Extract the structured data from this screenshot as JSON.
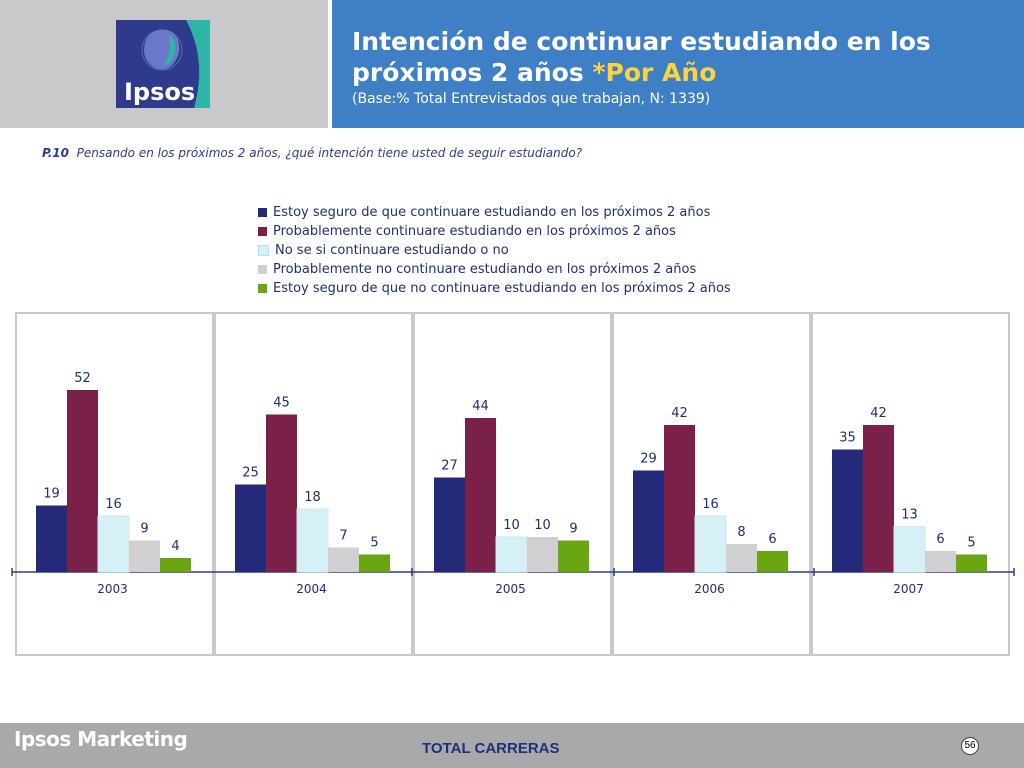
{
  "header": {
    "title_line1": "Intención de continuar estudiando en los",
    "title_line2": "próximos 2 años ",
    "title_accent": "*Por Año",
    "subtitle": "(Base:% Total Entrevistados que trabajan, N: 1339)",
    "logo_text": "Ipsos"
  },
  "question": {
    "code": "P.10",
    "text": "Pensando en los próximos 2 años, ¿qué intención tiene usted de seguir estudiando?"
  },
  "colors": {
    "series": [
      "#242a7a",
      "#7b2048",
      "#d5f1f6",
      "#d0d0d2",
      "#6aa512"
    ],
    "header_blue": "#3f7fc6",
    "accent_yellow": "#ffd33a"
  },
  "chart_data": {
    "type": "bar",
    "categories": [
      "2003",
      "2004",
      "2005",
      "2006",
      "2007"
    ],
    "series": [
      {
        "name": "Estoy seguro de que continuare estudiando en los próximos 2 años",
        "values": [
          19,
          25,
          27,
          29,
          35
        ]
      },
      {
        "name": "Probablemente continuare estudiando en los próximos 2 años",
        "values": [
          52,
          45,
          44,
          42,
          42
        ]
      },
      {
        "name": "No se si continuare estudiando o no",
        "values": [
          16,
          18,
          10,
          16,
          13
        ]
      },
      {
        "name": "Probablemente no continuare estudiando en los próximos 2 años",
        "values": [
          9,
          7,
          10,
          8,
          6
        ]
      },
      {
        "name": "Estoy seguro de que no continuare estudiando en los próximos 2 años",
        "values": [
          4,
          5,
          9,
          6,
          5
        ]
      }
    ],
    "ylim": [
      0,
      60
    ],
    "legend": "top"
  },
  "footer": {
    "brand": "Ipsos Marketing",
    "center": "TOTAL CARRERAS",
    "page": "56"
  }
}
